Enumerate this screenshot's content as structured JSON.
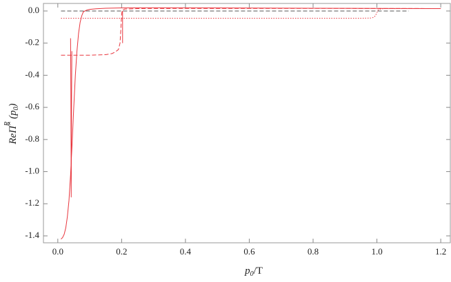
{
  "chart_data": {
    "type": "line",
    "xlabel": {
      "var": "p",
      "sub": "0",
      "rest": "/T"
    },
    "ylabel": {
      "base": "ReΠ̂",
      "sup": "R",
      "open": "(",
      "var": "p",
      "sub": "0",
      "close": ")"
    },
    "xlim": [
      -0.045,
      1.23
    ],
    "ylim": [
      -1.443,
      0.047
    ],
    "xticks": [
      {
        "value": 0,
        "label": "0.0"
      },
      0.2,
      0.4,
      0.6,
      0.8,
      {
        "value": 1,
        "label": "1.0"
      },
      1.2
    ],
    "yticks": [
      {
        "value": 0,
        "label": "0.0"
      },
      -0.2,
      -0.4,
      -0.6,
      -0.8,
      {
        "value": -1,
        "label": "-1.0"
      },
      -1.2,
      -1.4
    ],
    "series": [
      {
        "color": "#555555",
        "style": "dashed",
        "x": [
          0.01,
          1.1
        ],
        "values": [
          0,
          0
        ]
      },
      {
        "color": "#e8343c",
        "style": "solid",
        "x": [
          0.01,
          0.015,
          0.02,
          0.025,
          0.03,
          0.035,
          0.04,
          0.045,
          0.05,
          0.055,
          0.06,
          0.065,
          0.07,
          0.075,
          0.08,
          0.09,
          0.1,
          0.12,
          0.15,
          0.2,
          0.3,
          0.5,
          0.8,
          1.2
        ],
        "values": [
          -1.42,
          -1.41,
          -1.39,
          -1.35,
          -1.28,
          -1.18,
          -1.02,
          -0.82,
          -0.6,
          -0.4,
          -0.25,
          -0.14,
          -0.07,
          -0.03,
          -0.005,
          0.005,
          0.01,
          0.014,
          0.017,
          0.019,
          0.02,
          0.019,
          0.017,
          0.015
        ]
      },
      {
        "color": "#e8343c",
        "style": "solid",
        "x": [
          0.04,
          0.041,
          0.042,
          0.043,
          0.044
        ],
        "values": [
          -0.17,
          -0.5,
          -1.16,
          -0.6,
          -0.25
        ]
      },
      {
        "color": "#e8343c",
        "style": "solid",
        "x": [
          0.203,
          0.203
        ],
        "values": [
          0,
          -0.2
        ]
      },
      {
        "color": "#e8343c",
        "style": "dashed",
        "x": [
          0.01,
          0.1,
          0.15,
          0.17,
          0.18,
          0.19,
          0.195,
          0.198,
          0.2,
          0.202,
          0.21,
          0.25,
          0.4,
          0.8,
          1.2
        ],
        "values": [
          -0.275,
          -0.275,
          -0.272,
          -0.265,
          -0.255,
          -0.24,
          -0.2,
          -0.1,
          -0.02,
          0.005,
          0.012,
          0.015,
          0.016,
          0.016,
          0.015
        ]
      },
      {
        "color": "#e8343c",
        "style": "dotted",
        "x": [
          0.01,
          0.5,
          0.95,
          0.98,
          0.99,
          0.995,
          1.0,
          1.005,
          1.02,
          1.2
        ],
        "values": [
          -0.045,
          -0.045,
          -0.045,
          -0.044,
          -0.04,
          -0.03,
          -0.01,
          0.01,
          0.015,
          0.015
        ]
      }
    ]
  }
}
